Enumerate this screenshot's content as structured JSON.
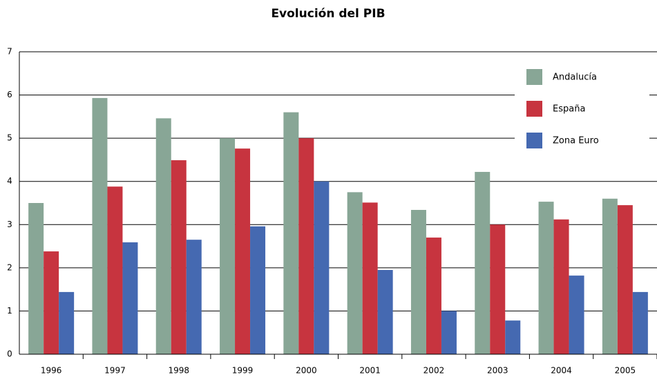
{
  "chart_data": {
    "type": "bar",
    "title": "Evolución del PIB",
    "categories": [
      "1996",
      "1997",
      "1998",
      "1999",
      "2000",
      "2001",
      "2002",
      "2003",
      "2004",
      "2005"
    ],
    "series": [
      {
        "name": "Andalucía",
        "color": "#88a696",
        "values": [
          3.5,
          5.93,
          5.46,
          5.0,
          5.6,
          3.75,
          3.34,
          4.22,
          3.53,
          3.6
        ]
      },
      {
        "name": "España",
        "color": "#c7343f",
        "values": [
          2.38,
          3.88,
          4.49,
          4.76,
          5.0,
          3.51,
          2.7,
          3.0,
          3.12,
          3.45
        ]
      },
      {
        "name": "Zona Euro",
        "color": "#4569b1",
        "values": [
          1.44,
          2.59,
          2.65,
          2.96,
          4.0,
          1.95,
          1.0,
          0.78,
          1.82,
          1.44
        ]
      }
    ],
    "ylim": [
      0,
      7
    ],
    "yticks": [
      0,
      1,
      2,
      3,
      4,
      5,
      6,
      7
    ],
    "grid": true,
    "legend": "top-right"
  }
}
